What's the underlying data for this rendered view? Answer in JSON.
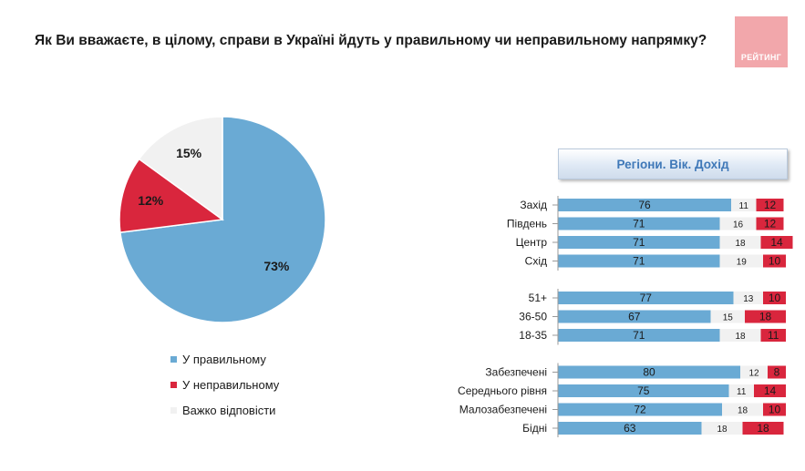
{
  "title": "Як Ви вважаєте, в цілому, справи в Україні йдуть у правильному чи неправильному напрямку?",
  "logo_text": "РЕЙТИНГ",
  "colors": {
    "right": "#6aaad4",
    "wrong": "#d9263d",
    "hard": "#f1f1f1"
  },
  "chart_data": [
    {
      "type": "pie",
      "title": "",
      "slices": [
        {
          "name": "У правильному",
          "value": 73,
          "label": "73%"
        },
        {
          "name": "У неправильному",
          "value": 12,
          "label": "12%"
        },
        {
          "name": "Важко відповісти",
          "value": 15,
          "label": "15%"
        }
      ],
      "legend_placement": "bottom"
    },
    {
      "type": "bar",
      "stacked": true,
      "orientation": "horizontal",
      "title": "Регіони. Вік. Дохід",
      "groups": [
        {
          "categories": [
            "Захід",
            "Південь",
            "Центр",
            "Схід"
          ]
        },
        {
          "categories": [
            "51+",
            "36-50",
            "18-35"
          ]
        },
        {
          "categories": [
            "Забезпечені",
            "Середнього рівня",
            "Малозабезпечені",
            "Бідні"
          ]
        }
      ],
      "categories": [
        "Захід",
        "Південь",
        "Центр",
        "Схід",
        "51+",
        "36-50",
        "18-35",
        "Забезпечені",
        "Середнього рівня",
        "Малозабезпечені",
        "Бідні"
      ],
      "series": [
        {
          "name": "У правильному",
          "values": [
            76,
            71,
            71,
            71,
            77,
            67,
            71,
            80,
            75,
            72,
            63
          ]
        },
        {
          "name": "Важко відповісти",
          "values": [
            11,
            16,
            18,
            19,
            13,
            15,
            18,
            12,
            11,
            18,
            18
          ]
        },
        {
          "name": "У неправильному",
          "values": [
            12,
            12,
            14,
            10,
            10,
            18,
            11,
            8,
            14,
            10,
            18
          ]
        }
      ]
    }
  ]
}
